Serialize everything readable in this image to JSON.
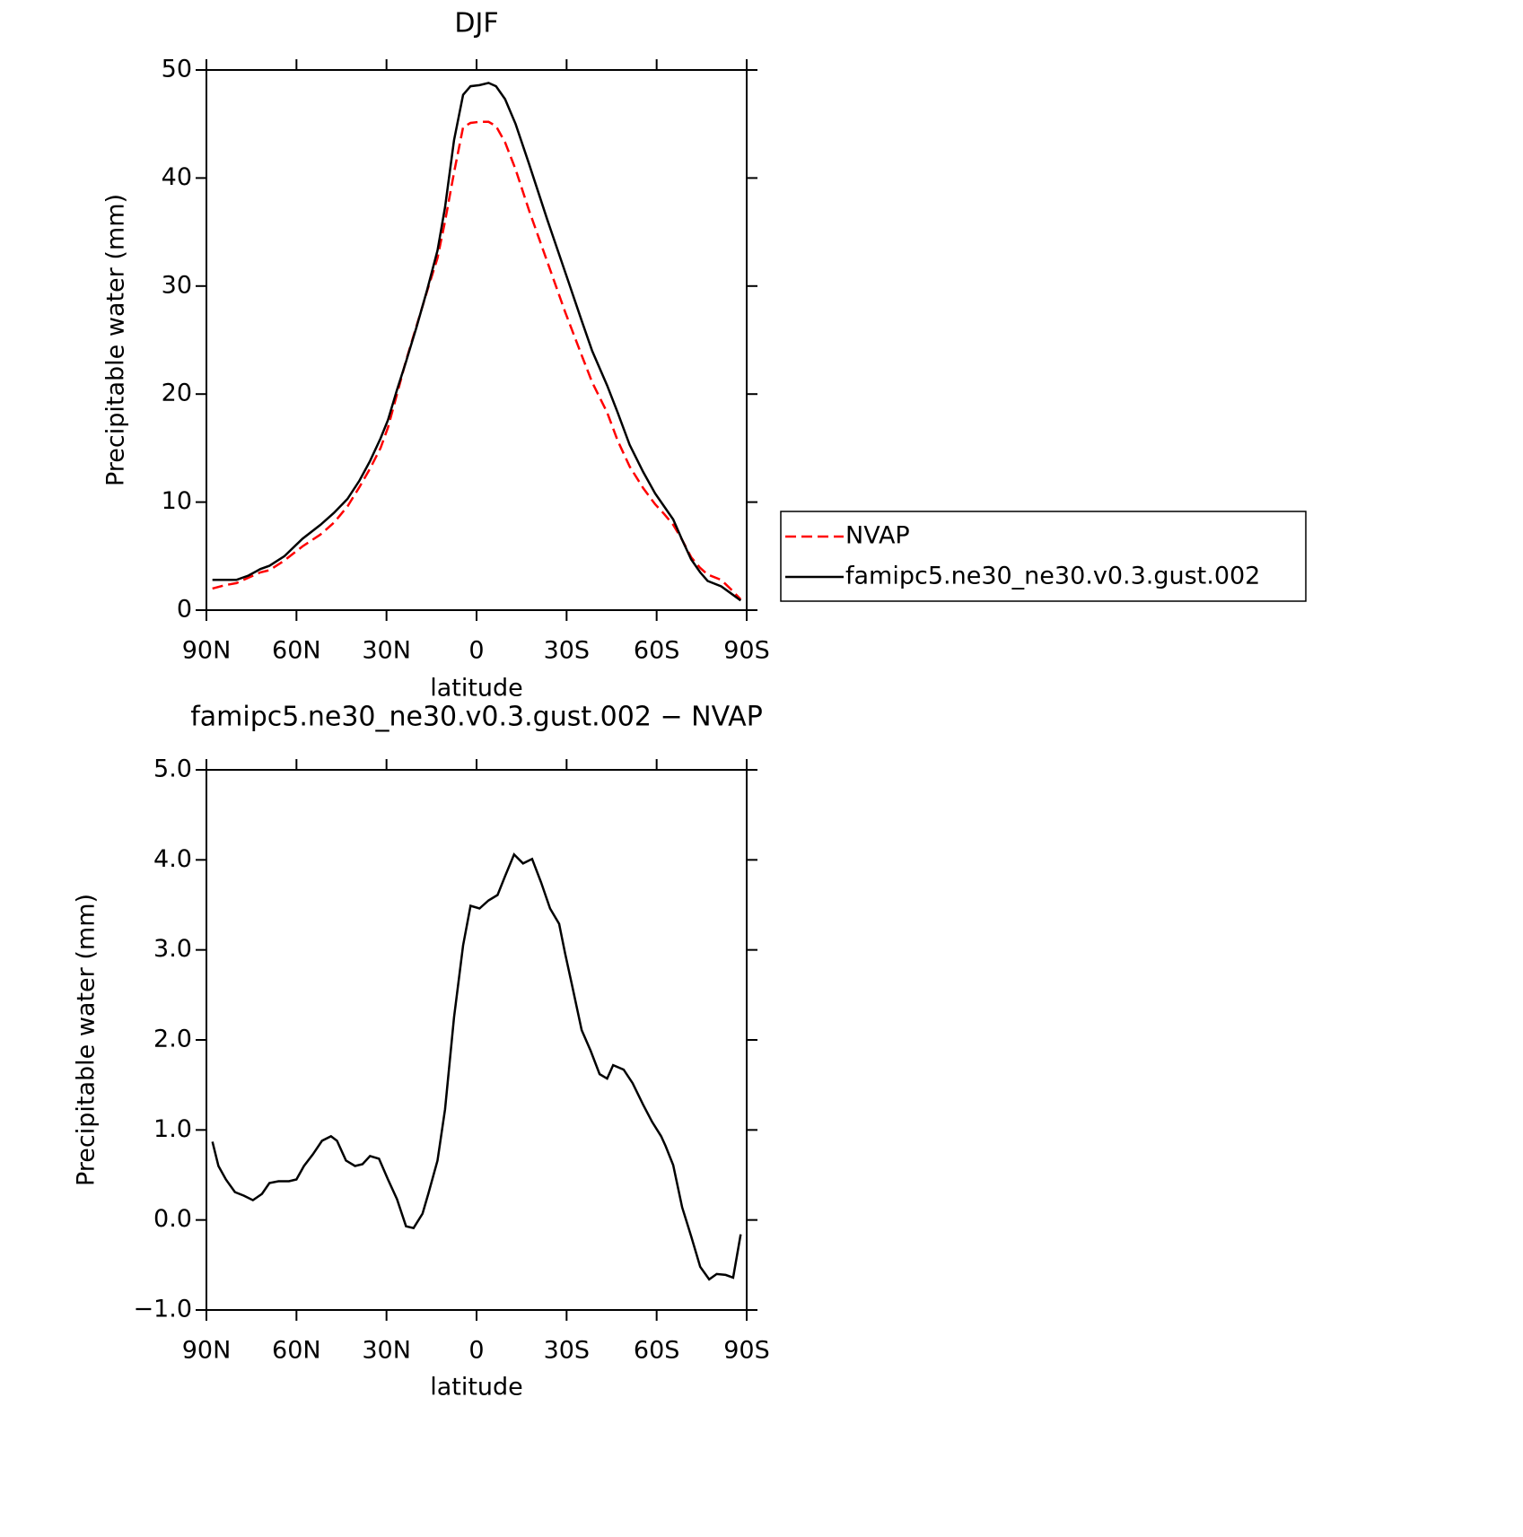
{
  "chart_data": [
    {
      "type": "line",
      "title": "DJF",
      "y_label": "Precipitable water (mm)",
      "x_label": "latitude",
      "x": [
        88,
        84,
        80,
        76,
        72,
        69,
        64,
        58,
        52,
        47.5,
        43,
        39,
        35.5,
        32,
        29.5,
        26.5,
        23.5,
        20,
        16.5,
        13,
        10.5,
        7.5,
        4.5,
        2,
        -1,
        -4,
        -6.5,
        -9.5,
        -13,
        -17.5,
        -23.5,
        -29.5,
        -35,
        -38.5,
        -43.5,
        -47,
        -51,
        -55.5,
        -59.5,
        -62.5,
        -65.5,
        -68.5,
        -71.5,
        -74.5,
        -77,
        -81.5,
        -84.5,
        -88
      ],
      "series": [
        {
          "name": "NVAP",
          "color": "#ff0000",
          "dash": "dashed",
          "values": [
            2.0,
            2.3,
            2.5,
            3.0,
            3.5,
            3.7,
            4.6,
            5.9,
            7.0,
            8.1,
            9.6,
            11.4,
            13.1,
            15.0,
            16.9,
            20.0,
            23.1,
            26.3,
            29.5,
            32.6,
            36.0,
            40.5,
            44.7,
            45.1,
            45.2,
            45.2,
            44.8,
            43.3,
            40.8,
            37.0,
            32.3,
            27.6,
            23.6,
            21.1,
            18.3,
            15.7,
            13.3,
            11.3,
            9.8,
            8.9,
            7.9,
            6.5,
            4.9,
            3.9,
            3.3,
            2.8,
            2.0,
            1.0
          ]
        },
        {
          "name": "famipc5.ne30_ne30.v0.3.gust.002",
          "color": "#000000",
          "dash": "solid",
          "values": [
            2.8,
            2.8,
            2.8,
            3.2,
            3.8,
            4.1,
            5.0,
            6.6,
            7.9,
            9.0,
            10.3,
            12.0,
            13.8,
            15.9,
            17.6,
            20.4,
            23.0,
            26.2,
            29.6,
            33.3,
            37.3,
            43.5,
            47.7,
            48.5,
            48.6,
            48.8,
            48.5,
            47.3,
            45.0,
            41.3,
            36.2,
            31.3,
            26.8,
            24.0,
            20.8,
            18.3,
            15.3,
            12.8,
            10.8,
            9.6,
            8.4,
            6.5,
            4.7,
            3.5,
            2.7,
            2.2,
            1.6,
            0.9
          ]
        }
      ],
      "xlim": [
        90,
        -90
      ],
      "xticks": [
        {
          "value": 90,
          "label": "90N"
        },
        {
          "value": 60,
          "label": "60N"
        },
        {
          "value": 30,
          "label": "30N"
        },
        0,
        {
          "value": -30,
          "label": "30S"
        },
        {
          "value": -60,
          "label": "60S"
        },
        {
          "value": -90,
          "label": "90S"
        }
      ],
      "ylim": [
        0,
        50
      ],
      "yticks": [
        0,
        10,
        20,
        30,
        40,
        50
      ],
      "legend": "outside right"
    },
    {
      "type": "line",
      "title": "famipc5.ne30_ne30.v0.3.gust.002 − NVAP",
      "y_label": "Precipitable water (mm)",
      "x_label": "latitude",
      "x": [
        88,
        86,
        83.5,
        80.5,
        77.5,
        74.5,
        71.5,
        69,
        66,
        62.5,
        60,
        57.5,
        54.5,
        51.5,
        48.5,
        46.5,
        43.5,
        40.5,
        38,
        35.5,
        32.5,
        29.5,
        26.5,
        23.5,
        21,
        18,
        16,
        13,
        10.5,
        7.5,
        4.5,
        2,
        -1,
        -4,
        -7,
        -9.5,
        -12.5,
        -15.5,
        -18.5,
        -21.5,
        -24.5,
        -27.5,
        -29.5,
        -32,
        -35,
        -38,
        -41,
        -43.5,
        -45.5,
        -49,
        -52,
        -55.5,
        -58.5,
        -61.5,
        -63,
        -65.5,
        -68.5,
        -71.5,
        -74.5,
        -77.5,
        -80,
        -83,
        -85.5,
        -88
      ],
      "values": [
        0.87,
        0.6,
        0.45,
        0.31,
        0.27,
        0.22,
        0.29,
        0.41,
        0.43,
        0.43,
        0.45,
        0.6,
        0.73,
        0.88,
        0.93,
        0.88,
        0.66,
        0.6,
        0.62,
        0.71,
        0.68,
        0.45,
        0.23,
        -0.07,
        -0.09,
        0.07,
        0.3,
        0.66,
        1.23,
        2.25,
        3.05,
        3.49,
        3.46,
        3.55,
        3.61,
        3.82,
        4.06,
        3.96,
        4.01,
        3.75,
        3.46,
        3.29,
        2.96,
        2.58,
        2.11,
        1.88,
        1.62,
        1.57,
        1.72,
        1.67,
        1.52,
        1.28,
        1.09,
        0.93,
        0.82,
        0.61,
        0.14,
        -0.18,
        -0.52,
        -0.66,
        -0.6,
        -0.61,
        -0.64,
        -0.16
      ],
      "color": "#000000",
      "xlim": [
        90,
        -90
      ],
      "xticks": [
        {
          "value": 90,
          "label": "90N"
        },
        {
          "value": 60,
          "label": "60N"
        },
        {
          "value": 30,
          "label": "30N"
        },
        0,
        {
          "value": -30,
          "label": "30S"
        },
        {
          "value": -60,
          "label": "60S"
        },
        {
          "value": -90,
          "label": "90S"
        }
      ],
      "ylim": [
        -1,
        5
      ],
      "yticks": [
        {
          "value": -1,
          "label": "−1.0"
        },
        {
          "value": 0,
          "label": "0.0"
        },
        {
          "value": 1,
          "label": "1.0"
        },
        {
          "value": 2,
          "label": "2.0"
        },
        {
          "value": 3,
          "label": "3.0"
        },
        {
          "value": 4,
          "label": "4.0"
        },
        {
          "value": 5,
          "label": "5.0"
        }
      ]
    }
  ]
}
